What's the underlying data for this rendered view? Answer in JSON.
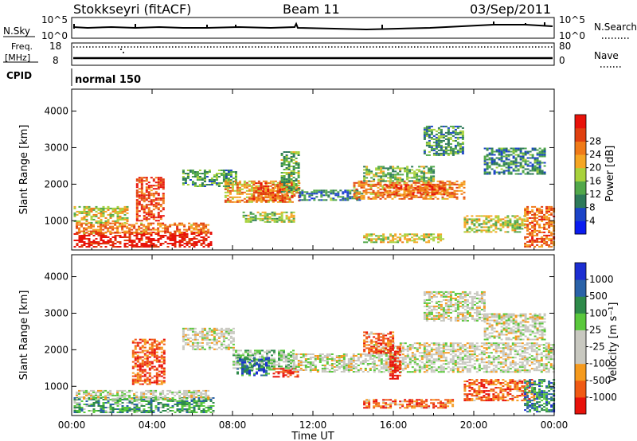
{
  "header": {
    "station": "Stokkseyri (fitACF)",
    "beam": "Beam 11",
    "date": "03/Sep/2011"
  },
  "panels": {
    "nsky": {
      "label": "N.Sky",
      "right_label": "N.Search",
      "left_ticks": [
        "10^5",
        "10^0"
      ],
      "right_ticks": [
        "10^5",
        "10^0"
      ]
    },
    "freq": {
      "label_line1": "Freq.",
      "label_line2": "[MHz]",
      "right_label": "Nave",
      "left_ticks": [
        "18",
        "8"
      ],
      "right_ticks": [
        "80",
        "0"
      ]
    },
    "cpid": {
      "label": "CPID",
      "program": "normal 150"
    }
  },
  "colors": {
    "power_scale": [
      "#0a1cf0",
      "#1c44c8",
      "#2e7a5a",
      "#52a84a",
      "#a8d23c",
      "#f5a623",
      "#f07a18",
      "#e04010",
      "#e8120a"
    ],
    "velocity_scale": [
      "#e8120a",
      "#f05a14",
      "#f59a1e",
      "#c8c8c0",
      "#c8c8c0",
      "#5ac83c",
      "#2e8a4a",
      "#2a62a8",
      "#1c2ed2"
    ]
  },
  "chart_data": [
    {
      "type": "heatmap",
      "panel": "power",
      "ylabel": "Slant Range [km]",
      "xlabel": "",
      "x_domain_hours": [
        0,
        24
      ],
      "ylim": [
        200,
        4600
      ],
      "yticks": [
        1000,
        2000,
        3000,
        4000
      ],
      "colorbar": {
        "label": "Power [dB]",
        "ticks": [
          "4",
          "8",
          "12",
          "16",
          "20",
          "24",
          "28"
        ]
      },
      "regions": [
        {
          "t": [
            0.1,
            6.9
          ],
          "r": [
            300,
            700
          ],
          "level": 0.95
        },
        {
          "t": [
            0.2,
            6.8
          ],
          "r": [
            650,
            950
          ],
          "level": 0.72
        },
        {
          "t": [
            0.1,
            2.8
          ],
          "r": [
            950,
            1400
          ],
          "level": 0.55
        },
        {
          "t": [
            3.2,
            4.6
          ],
          "r": [
            1000,
            2200
          ],
          "level": 0.82
        },
        {
          "t": [
            5.5,
            8.2
          ],
          "r": [
            1950,
            2400
          ],
          "level": 0.35
        },
        {
          "t": [
            7.6,
            11.0
          ],
          "r": [
            1500,
            2100
          ],
          "level": 0.65
        },
        {
          "t": [
            9.0,
            11.3
          ],
          "r": [
            1550,
            2050
          ],
          "level": 0.78
        },
        {
          "t": [
            8.5,
            11.0
          ],
          "r": [
            950,
            1250
          ],
          "level": 0.45
        },
        {
          "t": [
            10.4,
            11.3
          ],
          "r": [
            1800,
            2900
          ],
          "level": 0.4
        },
        {
          "t": [
            11.3,
            14.5
          ],
          "r": [
            1550,
            1850
          ],
          "level": 0.28
        },
        {
          "t": [
            14.0,
            19.5
          ],
          "r": [
            1600,
            2100
          ],
          "level": 0.7
        },
        {
          "t": [
            15.5,
            18.5
          ],
          "r": [
            1700,
            2000
          ],
          "level": 0.82
        },
        {
          "t": [
            14.5,
            18.0
          ],
          "r": [
            2100,
            2500
          ],
          "level": 0.42
        },
        {
          "t": [
            17.5,
            19.5
          ],
          "r": [
            2800,
            3600
          ],
          "level": 0.35
        },
        {
          "t": [
            14.5,
            18.5
          ],
          "r": [
            400,
            650
          ],
          "level": 0.55
        },
        {
          "t": [
            19.5,
            22.5
          ],
          "r": [
            700,
            1150
          ],
          "level": 0.5
        },
        {
          "t": [
            22.5,
            24.0
          ],
          "r": [
            300,
            1400
          ],
          "level": 0.75
        },
        {
          "t": [
            20.5,
            23.5
          ],
          "r": [
            2300,
            3000
          ],
          "level": 0.3
        }
      ]
    },
    {
      "type": "heatmap",
      "panel": "velocity",
      "ylabel": "Slant Range [km]",
      "xlabel": "Time UT",
      "x_domain_hours": [
        0,
        24
      ],
      "ylim": [
        200,
        4600
      ],
      "yticks": [
        1000,
        2000,
        3000,
        4000
      ],
      "xticks": [
        "00:00",
        "04:00",
        "08:00",
        "12:00",
        "16:00",
        "20:00",
        "00:00"
      ],
      "colorbar": {
        "label": "Velocity [m s⁻¹]",
        "ticks": [
          "1000",
          "500",
          "100",
          "25",
          "-25",
          "-100",
          "-500",
          "-1000"
        ]
      },
      "regions": [
        {
          "t": [
            0.1,
            7.0
          ],
          "r": [
            300,
            700
          ],
          "level": 0.68
        },
        {
          "t": [
            0.2,
            6.8
          ],
          "r": [
            650,
            900
          ],
          "level": 0.45
        },
        {
          "t": [
            3.0,
            4.6
          ],
          "r": [
            1050,
            2300
          ],
          "level": 0.15
        },
        {
          "t": [
            5.5,
            8.0
          ],
          "r": [
            2000,
            2600
          ],
          "level": 0.45
        },
        {
          "t": [
            8.0,
            11.0
          ],
          "r": [
            1450,
            2000
          ],
          "level": 0.55
        },
        {
          "t": [
            8.2,
            9.8
          ],
          "r": [
            1300,
            1800
          ],
          "level": 0.8
        },
        {
          "t": [
            10.0,
            11.2
          ],
          "r": [
            1250,
            1500
          ],
          "level": 0.05
        },
        {
          "t": [
            11.0,
            15.0
          ],
          "r": [
            1400,
            1900
          ],
          "level": 0.45
        },
        {
          "t": [
            15.0,
            24.0
          ],
          "r": [
            1400,
            2200
          ],
          "level": 0.45
        },
        {
          "t": [
            15.8,
            16.3
          ],
          "r": [
            1200,
            2100
          ],
          "level": 0.05
        },
        {
          "t": [
            14.5,
            16.0
          ],
          "r": [
            1900,
            2500
          ],
          "level": 0.18
        },
        {
          "t": [
            17.5,
            20.5
          ],
          "r": [
            2800,
            3600
          ],
          "level": 0.45
        },
        {
          "t": [
            14.5,
            19.0
          ],
          "r": [
            400,
            650
          ],
          "level": 0.2
        },
        {
          "t": [
            19.5,
            23.0
          ],
          "r": [
            600,
            1200
          ],
          "level": 0.18
        },
        {
          "t": [
            22.5,
            24.0
          ],
          "r": [
            300,
            1200
          ],
          "level": 0.75
        },
        {
          "t": [
            20.5,
            23.5
          ],
          "r": [
            2300,
            3000
          ],
          "level": 0.45
        }
      ]
    }
  ]
}
